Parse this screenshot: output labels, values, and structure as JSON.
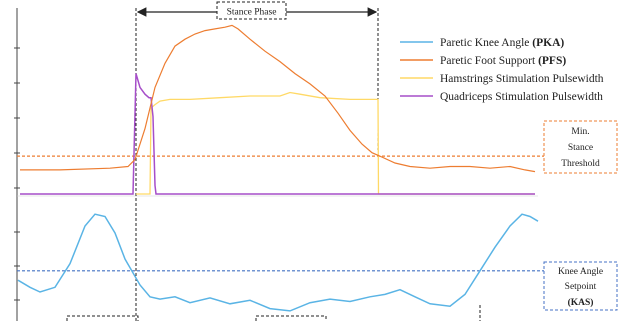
{
  "chart_data": {
    "type": "line",
    "stance_phase": {
      "label": "Stance Phase",
      "start": 136,
      "end": 378
    },
    "threshold": {
      "label_lines": [
        "Min.",
        "Stance",
        "Threshold"
      ],
      "level": 0.22,
      "color": "#ed7d31"
    },
    "setpoint": {
      "label_lines": [
        "Knee Angle",
        "Setpoint",
        "(KAS)"
      ],
      "level": 0.4,
      "color": "#4472c4"
    },
    "legend": [
      {
        "text": "Paretic Knee Angle ",
        "bold": "(PKA)",
        "color": "#5ab4e5"
      },
      {
        "text": "Paretic Foot Support ",
        "bold": "(PFS)",
        "color": "#ed7d31"
      },
      {
        "text": "Hamstrings  Stimulation  Pulsewidth",
        "bold": "",
        "color": "#ffd966"
      },
      {
        "text": "Quadriceps  Stimulation  Pulsewidth",
        "bold": "",
        "color": "#a64ec9"
      }
    ],
    "upper_panel": {
      "ylim": [
        0,
        1
      ],
      "series": [
        {
          "key": "pfs",
          "color": "#ed7d31",
          "x": [
            20,
            60,
            110,
            128,
            135,
            145,
            155,
            165,
            175,
            185,
            195,
            205,
            215,
            225,
            232,
            238,
            250,
            265,
            280,
            295,
            310,
            325,
            338,
            350,
            362,
            372,
            380,
            395,
            410,
            430,
            450,
            470,
            490,
            510,
            525,
            535
          ],
          "y": [
            0.14,
            0.14,
            0.15,
            0.16,
            0.2,
            0.38,
            0.62,
            0.76,
            0.86,
            0.9,
            0.93,
            0.95,
            0.96,
            0.97,
            0.98,
            0.96,
            0.9,
            0.83,
            0.77,
            0.7,
            0.64,
            0.57,
            0.47,
            0.37,
            0.29,
            0.24,
            0.22,
            0.18,
            0.16,
            0.15,
            0.16,
            0.16,
            0.15,
            0.16,
            0.14,
            0.13
          ]
        },
        {
          "key": "hamstrings",
          "color": "#ffd966",
          "x": [
            136,
            150,
            151,
            155,
            160,
            170,
            190,
            220,
            250,
            280,
            290,
            300,
            320,
            350,
            378,
            378.5,
            380,
            535
          ],
          "y": [
            0.0,
            0.0,
            0.5,
            0.52,
            0.54,
            0.55,
            0.55,
            0.56,
            0.57,
            0.57,
            0.59,
            0.58,
            0.56,
            0.55,
            0.55,
            0.0,
            0.0,
            0.0
          ]
        },
        {
          "key": "quadriceps",
          "color": "#a64ec9",
          "x": [
            20,
            132,
            133,
            136,
            140,
            145,
            149,
            151,
            153,
            154,
            155,
            156,
            535
          ],
          "y": [
            0.0,
            0.0,
            0.0,
            0.7,
            0.62,
            0.58,
            0.56,
            0.56,
            0.45,
            0.25,
            0.05,
            0.0,
            0.0
          ]
        }
      ]
    },
    "lower_panel": {
      "ylim": [
        0,
        1
      ],
      "series": [
        {
          "key": "pka",
          "color": "#5ab4e5",
          "x": [
            18,
            30,
            40,
            55,
            70,
            85,
            95,
            105,
            115,
            125,
            140,
            150,
            160,
            175,
            190,
            210,
            230,
            250,
            270,
            290,
            310,
            330,
            350,
            370,
            385,
            400,
            415,
            430,
            450,
            465,
            480,
            495,
            510,
            522,
            530,
            538
          ],
          "y": [
            0.32,
            0.26,
            0.22,
            0.26,
            0.46,
            0.78,
            0.88,
            0.86,
            0.72,
            0.5,
            0.28,
            0.18,
            0.16,
            0.18,
            0.13,
            0.17,
            0.12,
            0.15,
            0.08,
            0.06,
            0.13,
            0.16,
            0.14,
            0.18,
            0.2,
            0.24,
            0.18,
            0.12,
            0.1,
            0.2,
            0.4,
            0.6,
            0.78,
            0.88,
            0.86,
            0.82
          ]
        }
      ]
    }
  }
}
